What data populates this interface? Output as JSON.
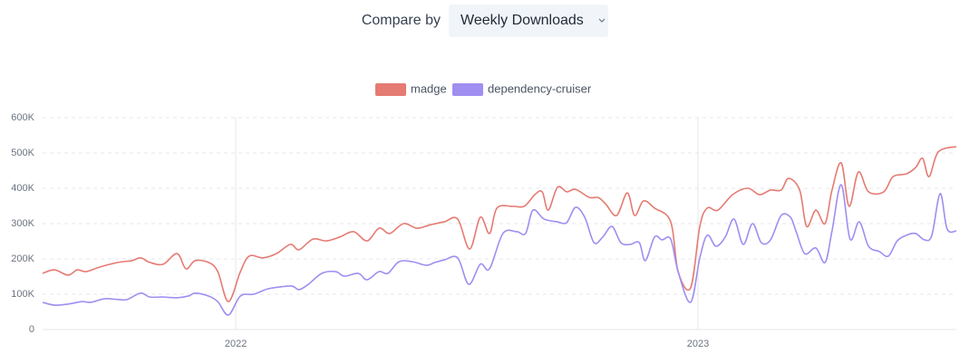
{
  "chart_data": {
    "type": "line",
    "compare_label": "Compare by",
    "dropdown": "Weekly Downloads",
    "xlim": [
      2021.582,
      2023.559
    ],
    "xticks": [
      2022,
      2023
    ],
    "ylim": [
      0,
      600000
    ],
    "yticks": [
      0,
      {
        "value": 100000,
        "label": "100K"
      },
      {
        "value": 200000,
        "label": "200K"
      },
      {
        "value": 300000,
        "label": "300K"
      },
      {
        "value": 400000,
        "label": "400K"
      },
      {
        "value": 500000,
        "label": "500K"
      },
      {
        "value": 600000,
        "label": "600K"
      }
    ],
    "grid": true,
    "legend": "top",
    "series": [
      {
        "name": "madge",
        "color": "#e57b73",
        "x": [
          2021.582,
          2021.608,
          2021.637,
          2021.657,
          2021.676,
          2021.706,
          2021.745,
          2021.775,
          2021.794,
          2021.814,
          2021.843,
          2021.873,
          2021.892,
          2021.912,
          2021.941,
          2021.961,
          2021.984,
          2022.01,
          2022.029,
          2022.059,
          2022.088,
          2022.118,
          2022.137,
          2022.167,
          2022.196,
          2022.225,
          2022.255,
          2022.284,
          2022.31,
          2022.333,
          2022.363,
          2022.392,
          2022.422,
          2022.451,
          2022.48,
          2022.506,
          2022.529,
          2022.549,
          2022.565,
          2022.598,
          2022.624,
          2022.647,
          2022.663,
          2022.676,
          2022.696,
          2022.716,
          2022.735,
          2022.765,
          2022.784,
          2022.8,
          2022.824,
          2022.847,
          2022.863,
          2022.882,
          2022.906,
          2022.941,
          2022.957,
          2022.984,
          2023.004,
          2023.02,
          2023.043,
          2023.075,
          2023.108,
          2023.133,
          2023.157,
          2023.18,
          2023.196,
          2023.22,
          2023.235,
          2023.255,
          2023.275,
          2023.29,
          2023.31,
          2023.327,
          2023.347,
          2023.369,
          2023.402,
          2023.422,
          2023.451,
          2023.471,
          2023.486,
          2023.5,
          2023.52,
          2023.559
        ],
        "values": [
          159000,
          169000,
          154000,
          169000,
          164000,
          177000,
          190000,
          195000,
          203000,
          190000,
          185000,
          215000,
          172000,
          195000,
          190000,
          164000,
          79000,
          164000,
          208000,
          203000,
          215000,
          241000,
          226000,
          256000,
          251000,
          262000,
          277000,
          251000,
          287000,
          272000,
          300000,
          287000,
          297000,
          305000,
          313000,
          228000,
          318000,
          272000,
          344000,
          349000,
          349000,
          382000,
          390000,
          338000,
          403000,
          390000,
          397000,
          374000,
          374000,
          356000,
          323000,
          387000,
          323000,
          364000,
          344000,
          305000,
          164000,
          118000,
          292000,
          344000,
          338000,
          382000,
          400000,
          382000,
          395000,
          395000,
          428000,
          395000,
          292000,
          338000,
          300000,
          395000,
          472000,
          349000,
          446000,
          390000,
          390000,
          433000,
          441000,
          459000,
          485000,
          433000,
          503000,
          518000
        ]
      },
      {
        "name": "dependency-cruiser",
        "color": "#a08ef0",
        "x": [
          2021.582,
          2021.608,
          2021.637,
          2021.667,
          2021.686,
          2021.716,
          2021.745,
          2021.765,
          2021.794,
          2021.814,
          2021.843,
          2021.873,
          2021.898,
          2021.912,
          2021.941,
          2021.961,
          2021.984,
          2022.01,
          2022.039,
          2022.069,
          2022.098,
          2022.122,
          2022.137,
          2022.157,
          2022.186,
          2022.216,
          2022.235,
          2022.265,
          2022.284,
          2022.31,
          2022.329,
          2022.353,
          2022.382,
          2022.412,
          2022.431,
          2022.451,
          2022.48,
          2022.504,
          2022.529,
          2022.549,
          2022.578,
          2022.608,
          2022.627,
          2022.643,
          2022.667,
          2022.696,
          2022.716,
          2022.735,
          2022.755,
          2022.775,
          2022.794,
          2022.814,
          2022.833,
          2022.853,
          2022.873,
          2022.886,
          2022.906,
          2022.922,
          2022.941,
          2022.957,
          2022.984,
          2023.004,
          2023.02,
          2023.039,
          2023.059,
          2023.078,
          2023.098,
          2023.118,
          2023.137,
          2023.157,
          2023.18,
          2023.2,
          2023.212,
          2023.231,
          2023.255,
          2023.275,
          2023.29,
          2023.31,
          2023.329,
          2023.349,
          2023.369,
          2023.392,
          2023.412,
          2023.431,
          2023.451,
          2023.471,
          2023.49,
          2023.506,
          2023.524,
          2023.539,
          2023.559
        ],
        "values": [
          77000,
          69000,
          72000,
          79000,
          77000,
          87000,
          85000,
          85000,
          103000,
          92000,
          92000,
          90000,
          95000,
          103000,
          95000,
          79000,
          41000,
          95000,
          100000,
          115000,
          121000,
          123000,
          113000,
          128000,
          159000,
          164000,
          151000,
          159000,
          141000,
          164000,
          159000,
          192000,
          192000,
          182000,
          190000,
          197000,
          203000,
          128000,
          185000,
          172000,
          272000,
          277000,
          272000,
          338000,
          313000,
          305000,
          303000,
          346000,
          318000,
          246000,
          262000,
          292000,
          246000,
          241000,
          246000,
          195000,
          262000,
          254000,
          256000,
          164000,
          77000,
          203000,
          267000,
          236000,
          262000,
          313000,
          241000,
          300000,
          246000,
          254000,
          323000,
          318000,
          279000,
          215000,
          231000,
          190000,
          279000,
          410000,
          256000,
          305000,
          236000,
          221000,
          208000,
          251000,
          267000,
          272000,
          254000,
          267000,
          385000,
          285000,
          279000
        ]
      }
    ]
  }
}
